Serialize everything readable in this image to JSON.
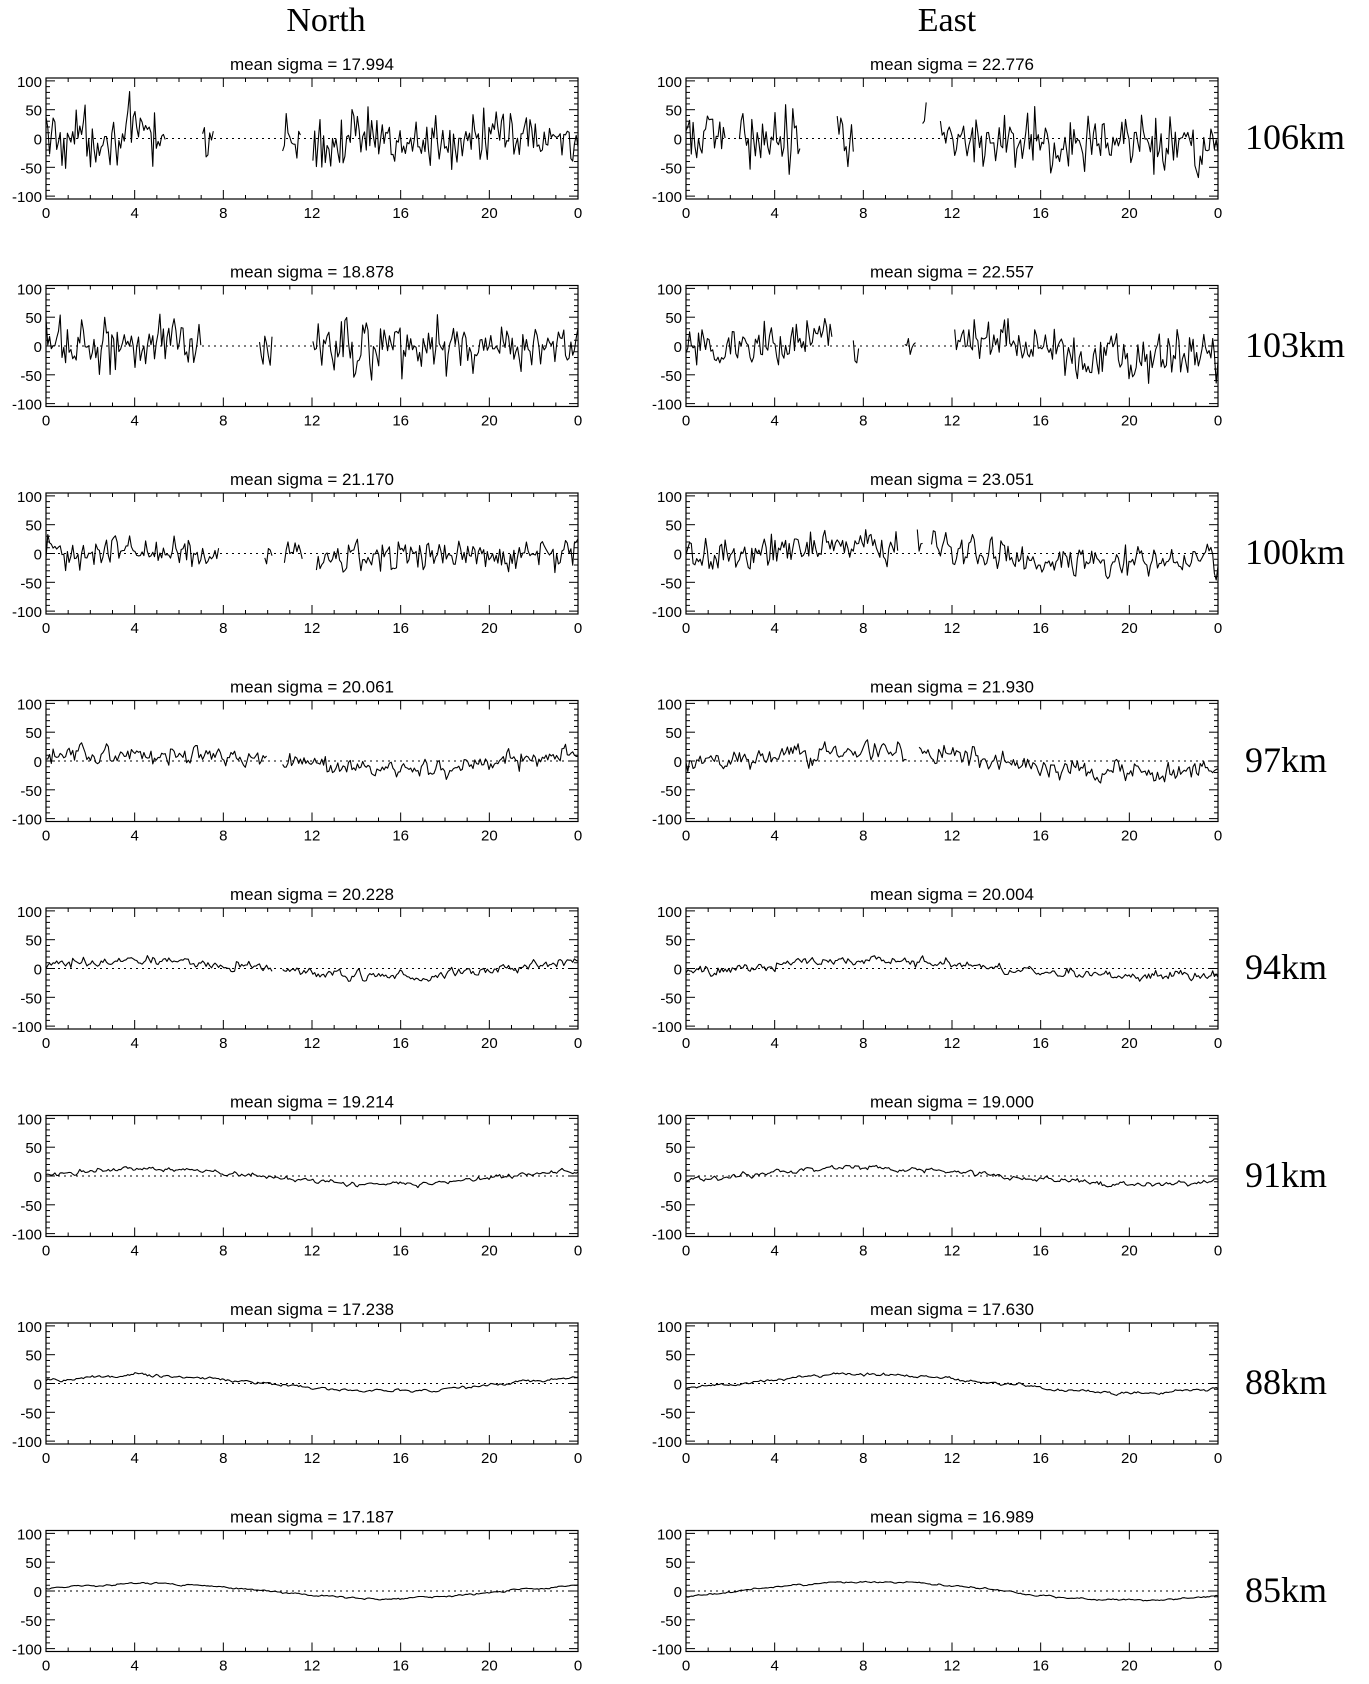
{
  "headers": {
    "left": "North",
    "right": "East"
  },
  "rows": [
    {
      "altitude": "106km",
      "north_sigma": "mean sigma = 17.994",
      "east_sigma": "mean sigma = 22.776"
    },
    {
      "altitude": "103km",
      "north_sigma": "mean sigma = 18.878",
      "east_sigma": "mean sigma = 22.557"
    },
    {
      "altitude": "100km",
      "north_sigma": "mean sigma = 21.170",
      "east_sigma": "mean sigma = 23.051"
    },
    {
      "altitude": "97km",
      "north_sigma": "mean sigma = 20.061",
      "east_sigma": "mean sigma = 21.930"
    },
    {
      "altitude": "94km",
      "north_sigma": "mean sigma = 20.228",
      "east_sigma": "mean sigma = 20.004"
    },
    {
      "altitude": "91km",
      "north_sigma": "mean sigma = 19.214",
      "east_sigma": "mean sigma = 19.000"
    },
    {
      "altitude": "88km",
      "north_sigma": "mean sigma = 17.238",
      "east_sigma": "mean sigma = 17.630"
    },
    {
      "altitude": "85km",
      "north_sigma": "mean sigma = 17.187",
      "east_sigma": "mean sigma = 16.989"
    }
  ],
  "chart_data": {
    "type": "line",
    "layout": "8 rows x 2 columns of small multiples",
    "x_ticks": [
      "0",
      "4",
      "8",
      "12",
      "16",
      "20",
      "0"
    ],
    "xlim": [
      0,
      24
    ],
    "y_ticks": [
      "100",
      "50",
      "0",
      "-50",
      "-100"
    ],
    "ylim": [
      -105,
      105
    ],
    "zero_line": "dotted",
    "grid": false,
    "series_style": {
      "color": "#000000"
    },
    "panels": [
      {
        "column": "North",
        "altitude": "106km",
        "mean_sigma": 17.994,
        "noise": 27,
        "smooth": 0.05,
        "trend_amp": 5,
        "gaps": [
          [
            5.4,
            7.0
          ],
          [
            7.6,
            10.6
          ],
          [
            11.5,
            12.0
          ]
        ]
      },
      {
        "column": "East",
        "altitude": "106km",
        "mean_sigma": 22.776,
        "noise": 28,
        "smooth": 0.1,
        "trend_amp": 15,
        "gaps": [
          [
            1.8,
            2.4
          ],
          [
            5.2,
            6.8
          ],
          [
            7.6,
            10.6
          ],
          [
            10.9,
            11.4
          ]
        ]
      },
      {
        "column": "North",
        "altitude": "103km",
        "mean_sigma": 18.878,
        "noise": 25,
        "smooth": 0.1,
        "trend_amp": 5,
        "gaps": [
          [
            7.0,
            9.6
          ],
          [
            10.2,
            12.0
          ]
        ]
      },
      {
        "column": "East",
        "altitude": "103km",
        "mean_sigma": 22.557,
        "noise": 24,
        "smooth": 0.15,
        "trend_amp": 15,
        "gaps": [
          [
            6.6,
            7.5
          ],
          [
            7.8,
            9.8
          ],
          [
            10.4,
            12.1
          ]
        ]
      },
      {
        "column": "North",
        "altitude": "100km",
        "mean_sigma": 21.17,
        "noise": 17,
        "smooth": 0.2,
        "trend_amp": 6,
        "gaps": [
          [
            7.8,
            9.8
          ],
          [
            10.2,
            10.7
          ],
          [
            11.6,
            12.2
          ]
        ]
      },
      {
        "column": "East",
        "altitude": "100km",
        "mean_sigma": 23.051,
        "noise": 18,
        "smooth": 0.25,
        "trend_amp": 15,
        "gaps": [
          [
            9.6,
            10.4
          ],
          [
            10.7,
            11.0
          ]
        ]
      },
      {
        "column": "North",
        "altitude": "97km",
        "mean_sigma": 20.061,
        "noise": 12,
        "smooth": 0.35,
        "trend_amp": 14,
        "gaps": [
          [
            10.0,
            10.6
          ]
        ]
      },
      {
        "column": "East",
        "altitude": "97km",
        "mean_sigma": 21.93,
        "noise": 12,
        "smooth": 0.35,
        "trend_amp": 20,
        "gaps": [
          [
            10.0,
            10.5
          ]
        ]
      },
      {
        "column": "North",
        "altitude": "94km",
        "mean_sigma": 20.228,
        "noise": 8,
        "smooth": 0.5,
        "trend_amp": 14,
        "gaps": [
          [
            10.2,
            10.6
          ]
        ]
      },
      {
        "column": "East",
        "altitude": "94km",
        "mean_sigma": 20.004,
        "noise": 8,
        "smooth": 0.5,
        "trend_amp": 14,
        "gaps": []
      },
      {
        "column": "North",
        "altitude": "91km",
        "mean_sigma": 19.214,
        "noise": 5,
        "smooth": 0.6,
        "trend_amp": 12,
        "gaps": []
      },
      {
        "column": "East",
        "altitude": "91km",
        "mean_sigma": 19.0,
        "noise": 5,
        "smooth": 0.6,
        "trend_amp": 14,
        "gaps": []
      },
      {
        "column": "North",
        "altitude": "88km",
        "mean_sigma": 17.238,
        "noise": 4,
        "smooth": 0.7,
        "trend_amp": 14,
        "gaps": []
      },
      {
        "column": "East",
        "altitude": "88km",
        "mean_sigma": 17.63,
        "noise": 4,
        "smooth": 0.7,
        "trend_amp": 16,
        "gaps": []
      },
      {
        "column": "North",
        "altitude": "85km",
        "mean_sigma": 17.187,
        "noise": 3,
        "smooth": 0.75,
        "trend_amp": 13,
        "gaps": []
      },
      {
        "column": "East",
        "altitude": "85km",
        "mean_sigma": 16.989,
        "noise": 3,
        "smooth": 0.75,
        "trend_amp": 16,
        "gaps": []
      }
    ]
  }
}
